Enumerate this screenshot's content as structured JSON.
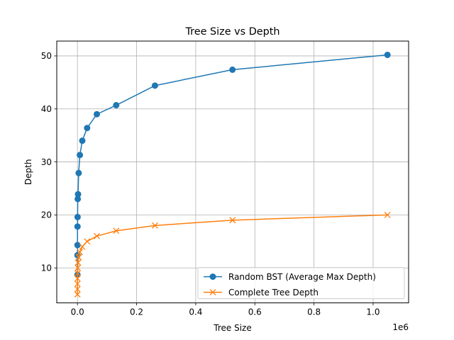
{
  "chart_data": {
    "type": "line",
    "title": "Tree Size vs Depth",
    "xlabel": "Tree Size",
    "ylabel": "Depth",
    "x_scale_label": "1e6",
    "x_scale_factor": 1000000,
    "xlim": [
      -70000,
      1120000
    ],
    "ylim": [
      3.4,
      52.8
    ],
    "xticks": [
      0,
      200000,
      400000,
      600000,
      800000,
      1000000
    ],
    "xtick_labels": [
      "0.0",
      "0.2",
      "0.4",
      "0.6",
      "0.8",
      "1.0"
    ],
    "yticks": [
      10,
      20,
      30,
      40,
      50
    ],
    "ytick_labels": [
      "10",
      "20",
      "30",
      "40",
      "50"
    ],
    "grid": true,
    "legend_position": "lower-right",
    "x": [
      32,
      64,
      128,
      256,
      512,
      1024,
      2048,
      4096,
      8192,
      16384,
      32768,
      65536,
      131072,
      262144,
      524288,
      1048576
    ],
    "series": [
      {
        "name": "Random BST (Average Max Depth)",
        "marker": "circle",
        "color": "#1f77b4",
        "values": [
          8.7,
          12.4,
          14.3,
          17.8,
          19.6,
          23.0,
          23.9,
          27.9,
          31.3,
          34.0,
          36.4,
          39.0,
          40.7,
          44.4,
          47.4,
          50.2
        ]
      },
      {
        "name": "Complete Tree Depth",
        "marker": "x",
        "color": "#ff7f0e",
        "values": [
          5,
          6,
          7,
          8,
          9,
          10,
          11,
          12,
          13,
          14,
          15,
          16,
          17,
          18,
          19,
          20
        ]
      }
    ]
  }
}
